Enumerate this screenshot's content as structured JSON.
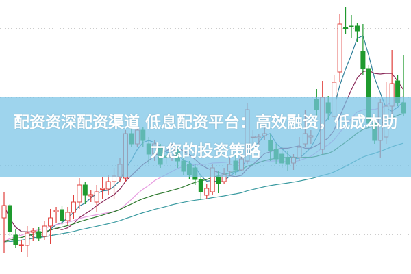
{
  "title": "配资资深配资渠道 低息配资平台：高效融资，低成本助力您的投资策略",
  "chart_data": {
    "type": "candlestick",
    "grid": true,
    "grid_style": "dotted",
    "grid_levels": [
      13.58,
      12.58,
      11.58,
      10.58
    ],
    "ylim": [
      10.0,
      14.0
    ],
    "colors": {
      "up": "#e0403c",
      "down": "#1f9a2e",
      "banner": "#78c3e6"
    },
    "moving_averages": [
      {
        "period": 5,
        "color": "#2f7f9a"
      },
      {
        "period": 10,
        "color": "#8a2a5a"
      },
      {
        "period": 20,
        "color": "#e79be0"
      },
      {
        "period": 30,
        "color": "#2f7a2f"
      },
      {
        "period": 60,
        "color": "#3a9aa0"
      }
    ],
    "candles": [
      [
        10.82,
        11.0,
        11.2,
        10.3
      ],
      [
        11.0,
        10.62,
        11.02,
        10.55
      ],
      [
        10.57,
        10.43,
        10.65,
        10.38
      ],
      [
        10.42,
        10.43,
        10.5,
        10.32
      ],
      [
        10.42,
        10.6,
        10.7,
        10.25
      ],
      [
        10.61,
        10.63,
        10.67,
        10.48
      ],
      [
        10.62,
        10.52,
        10.68,
        10.48
      ],
      [
        10.55,
        10.7,
        10.78,
        10.5
      ],
      [
        10.7,
        10.82,
        10.95,
        10.44
      ],
      [
        10.91,
        10.93,
        10.98,
        10.75
      ],
      [
        10.94,
        10.78,
        11.0,
        10.72
      ],
      [
        10.78,
        10.9,
        10.98,
        10.72
      ],
      [
        10.9,
        11.05,
        11.15,
        10.8
      ],
      [
        11.05,
        11.3,
        11.4,
        10.95
      ],
      [
        11.3,
        11.15,
        11.35,
        11.02
      ],
      [
        11.14,
        11.16,
        11.22,
        11.05
      ],
      [
        11.05,
        11.2,
        11.3,
        10.9
      ],
      [
        11.24,
        11.25,
        11.42,
        11.1
      ],
      [
        11.24,
        11.35,
        11.45,
        11.15
      ],
      [
        11.35,
        11.43,
        11.55,
        11.1
      ],
      [
        11.42,
        11.6,
        11.7,
        11.35
      ],
      [
        11.4,
        12.05,
        12.1,
        11.35
      ],
      [
        12.05,
        11.9,
        12.15,
        11.85
      ],
      [
        11.9,
        12.1,
        12.2,
        11.85
      ],
      [
        12.1,
        11.95,
        12.15,
        11.85
      ],
      [
        11.9,
        11.75,
        12.0,
        11.6
      ],
      [
        11.75,
        11.9,
        11.95,
        11.65
      ],
      [
        11.85,
        11.6,
        11.9,
        11.55
      ],
      [
        11.72,
        11.7,
        11.8,
        11.6
      ],
      [
        11.7,
        11.85,
        11.9,
        11.65
      ],
      [
        11.8,
        11.65,
        11.85,
        11.55
      ],
      [
        11.65,
        11.5,
        11.72,
        11.45
      ],
      [
        11.6,
        11.45,
        11.65,
        11.38
      ],
      [
        11.55,
        11.38,
        11.6,
        11.3
      ],
      [
        11.38,
        11.2,
        11.45,
        11.08
      ],
      [
        11.15,
        11.25,
        11.32,
        11.1
      ],
      [
        11.2,
        11.55,
        11.6,
        11.15
      ],
      [
        11.42,
        11.32,
        11.5,
        11.18
      ],
      [
        11.35,
        11.45,
        11.55,
        11.32
      ],
      [
        11.5,
        11.6,
        11.7,
        11.45
      ],
      [
        11.65,
        11.52,
        11.75,
        11.45
      ],
      [
        11.52,
        11.68,
        11.75,
        11.5
      ],
      [
        11.65,
        12.4,
        12.5,
        11.6
      ],
      [
        12.0,
        12.01,
        12.1,
        11.85
      ],
      [
        11.99,
        12.0,
        12.05,
        11.88
      ],
      [
        12.02,
        12.05,
        12.15,
        11.95
      ],
      [
        11.95,
        11.8,
        12.05,
        11.65
      ],
      [
        11.82,
        11.68,
        11.9,
        11.6
      ],
      [
        11.75,
        11.62,
        11.85,
        11.55
      ],
      [
        11.7,
        11.6,
        11.8,
        11.5
      ],
      [
        11.62,
        11.7,
        11.75,
        11.52
      ],
      [
        11.7,
        11.85,
        12.0,
        11.65
      ],
      [
        11.9,
        12.05,
        12.4,
        11.85
      ],
      [
        12.0,
        12.02,
        12.1,
        11.9
      ],
      [
        12.55,
        12.4,
        12.7,
        12.3
      ],
      [
        11.82,
        12.58,
        12.82,
        11.75
      ],
      [
        12.5,
        12.35,
        12.6,
        12.25
      ],
      [
        12.3,
        12.8,
        12.9,
        12.25
      ],
      [
        12.95,
        13.65,
        13.8,
        12.8
      ],
      [
        13.6,
        13.59,
        13.9,
        13.5
      ],
      [
        13.62,
        13.61,
        13.78,
        13.45
      ],
      [
        13.62,
        13.55,
        13.67,
        13.38
      ],
      [
        13.25,
        13.0,
        13.65,
        12.9
      ],
      [
        13.0,
        12.2,
        13.05,
        12.15
      ],
      [
        12.2,
        11.95,
        12.25,
        11.9
      ],
      [
        11.95,
        12.5,
        12.55,
        11.7
      ],
      [
        12.0,
        12.45,
        12.8,
        11.9
      ],
      [
        12.45,
        12.78,
        13.27,
        12.3
      ],
      [
        12.82,
        12.5,
        12.9,
        12.45
      ],
      [
        12.5,
        12.35,
        13.2,
        12.3
      ]
    ],
    "candle_fields": [
      "open",
      "close",
      "high",
      "low"
    ]
  }
}
